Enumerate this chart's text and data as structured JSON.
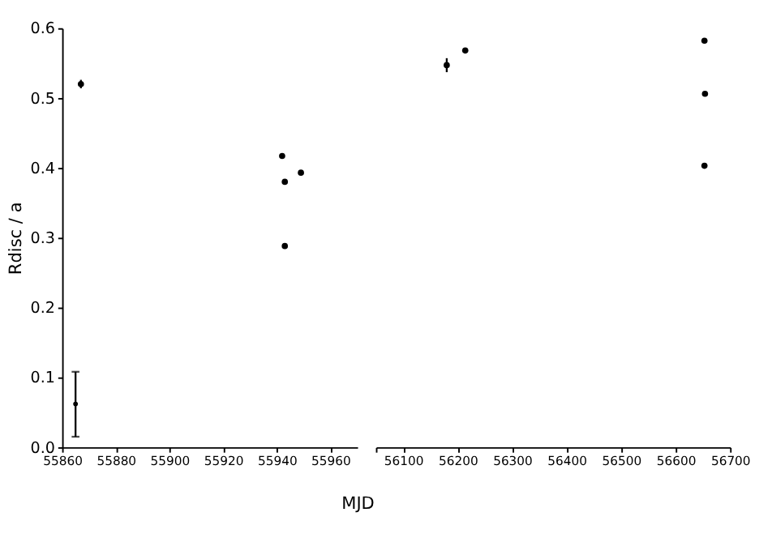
{
  "chart_data": [
    {
      "type": "scatter",
      "ylabel": "Rdisc / a",
      "xlabel": "MJD",
      "xlim": [
        55860,
        55970
      ],
      "xticks": [
        55860,
        55880,
        55900,
        55920,
        55940,
        55960
      ],
      "ylim": [
        0,
        0.6
      ],
      "yticks": [
        {
          "value": 0,
          "label": "0.0"
        },
        0.1,
        0.2,
        0.3,
        0.4,
        0.5,
        0.6
      ],
      "grid": false,
      "series": [
        {
          "color": "#000000",
          "marker": "circle",
          "x": [
            55867,
            55942,
            55943,
            55943,
            55949
          ],
          "values": [
            0.52,
            0.417,
            0.38,
            0.288,
            0.393
          ],
          "errors": [
            0.006,
            null,
            null,
            null,
            null
          ]
        },
        {
          "color": "#000000",
          "marker": "none",
          "x": [
            55865
          ],
          "values": [
            0.062
          ],
          "errors": [
            [
              0.015,
              0.108
            ]
          ]
        }
      ]
    },
    {
      "type": "scatter",
      "tick_labels": "x",
      "xlim": [
        56050,
        56700
      ],
      "xticks": [
        {
          "value": 56050,
          "label": null
        },
        56100,
        56200,
        56300,
        56400,
        56500,
        56600,
        56700
      ],
      "ylim": [
        0,
        0.6
      ],
      "grid": false,
      "series": [
        {
          "color": "#000000",
          "marker": "circle",
          "x": [
            56180,
            56214,
            56653,
            56654,
            56653
          ],
          "values": [
            0.547,
            0.568,
            0.582,
            0.506,
            0.403
          ],
          "errors": [
            0.01,
            null,
            null,
            null,
            null
          ]
        }
      ]
    }
  ]
}
